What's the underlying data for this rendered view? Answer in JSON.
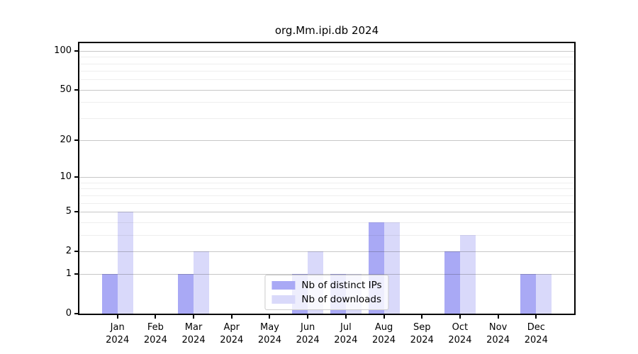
{
  "figure": {
    "title": "org.Mm.ipi.db 2024",
    "background_color": "#ffffff"
  },
  "chart_data": {
    "type": "bar",
    "title": "org.Mm.ipi.db 2024",
    "xlabel": "",
    "ylabel": "",
    "y_scale": "log1p",
    "grid": true,
    "categories": [
      "Jan 2024",
      "Feb 2024",
      "Mar 2024",
      "Apr 2024",
      "May 2024",
      "Jun 2024",
      "Jul 2024",
      "Aug 2024",
      "Sep 2024",
      "Oct 2024",
      "Nov 2024",
      "Dec 2024"
    ],
    "months": [
      "Jan",
      "Feb",
      "Mar",
      "Apr",
      "May",
      "Jun",
      "Jul",
      "Aug",
      "Sep",
      "Oct",
      "Nov",
      "Dec"
    ],
    "year": "2024",
    "series": [
      {
        "name": "Nb of distinct IPs",
        "color": "#a9a9f5",
        "values": [
          1,
          0,
          1,
          0,
          0,
          1,
          1,
          4,
          0,
          2,
          0,
          1
        ]
      },
      {
        "name": "Nb of downloads",
        "color": "#d9d9fa",
        "values": [
          5,
          0,
          2,
          0,
          0,
          2,
          1,
          4,
          0,
          3,
          0,
          1
        ]
      }
    ],
    "y_major_ticks": [
      0,
      1,
      2,
      5,
      10,
      20,
      50,
      100
    ],
    "y_minor_gridlines": [
      3,
      4,
      6,
      7,
      8,
      9,
      30,
      40,
      60,
      70,
      80,
      90
    ],
    "ylim": [
      0,
      115
    ],
    "legend": {
      "position": "lower center",
      "entries": [
        {
          "label": "Nb of distinct IPs",
          "color": "#a9a9f5"
        },
        {
          "label": "Nb of downloads",
          "color": "#d9d9fa"
        }
      ]
    }
  }
}
